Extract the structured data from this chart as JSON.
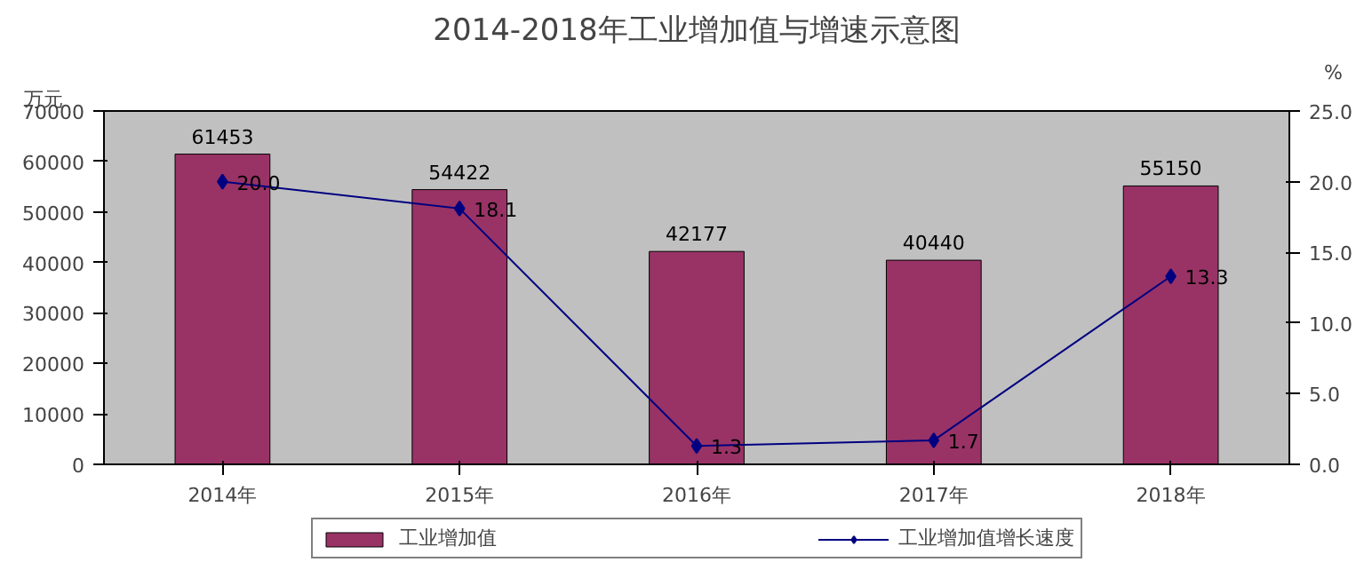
{
  "chart_data": {
    "type": "bar",
    "title": "2014-2018年工业增加值与增速示意图",
    "ylabel": "万元",
    "y2label": "%",
    "categories": [
      "2014年",
      "2015年",
      "2016年",
      "2017年",
      "2018年"
    ],
    "series": [
      {
        "name": "工业增加值",
        "color": "#993366",
        "values": [
          61453,
          54422,
          42177,
          40440,
          55150
        ]
      },
      {
        "name": "工业增加值增长速度",
        "type": "line",
        "axis": "y2",
        "color": "#000080",
        "marker": "diamond",
        "values": [
          20.0,
          18.1,
          1.3,
          1.7,
          13.3
        ],
        "value_labels": [
          "20.0",
          "18.1",
          "1.3",
          "1.7",
          "13.3"
        ]
      }
    ],
    "ylim": [
      0,
      70000
    ],
    "yticks": [
      0,
      10000,
      20000,
      30000,
      40000,
      50000,
      60000,
      70000
    ],
    "y2lim": [
      0,
      25.0
    ],
    "y2ticks": [
      {
        "value": 0,
        "label": "0.0"
      },
      {
        "value": 5,
        "label": "5.0"
      },
      {
        "value": 10,
        "label": "10.0"
      },
      {
        "value": 15,
        "label": "15.0"
      },
      {
        "value": 20,
        "label": "20.0"
      },
      {
        "value": 25,
        "label": "25.0"
      }
    ],
    "data_labels": true,
    "grid": false,
    "legend": "bottom"
  }
}
